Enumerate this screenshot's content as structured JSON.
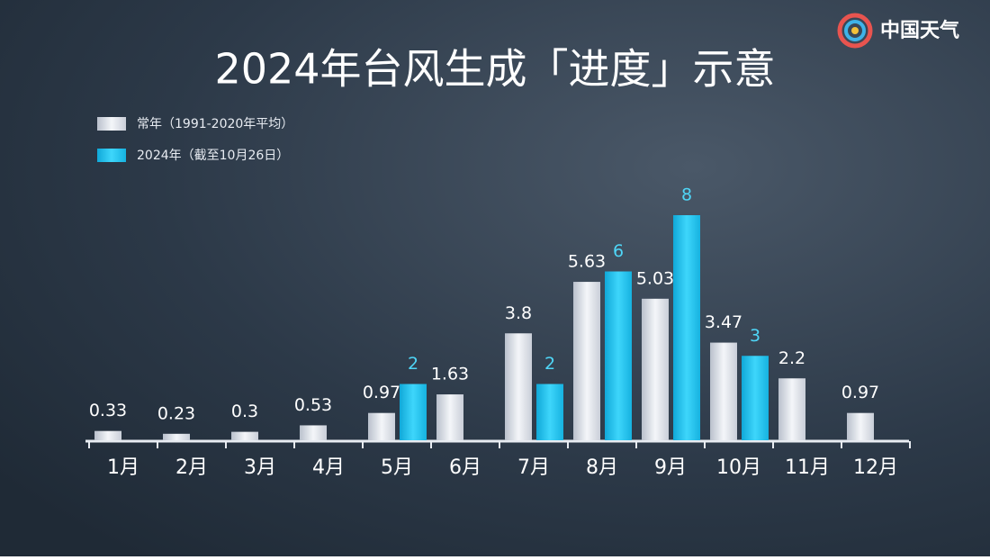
{
  "logo": "中国天气",
  "chart_data": {
    "type": "bar",
    "title": "2024年台风生成「进度」示意",
    "categories": [
      "1月",
      "2月",
      "3月",
      "4月",
      "5月",
      "6月",
      "7月",
      "8月",
      "9月",
      "10月",
      "11月",
      "12月"
    ],
    "series": [
      {
        "name": "常年（1991-2020年平均）",
        "color": "#dfe3ea",
        "values": [
          0.33,
          0.23,
          0.3,
          0.53,
          0.97,
          1.63,
          3.8,
          5.63,
          5.03,
          3.47,
          2.2,
          0.97
        ]
      },
      {
        "name": "2024年（截至10月26日）",
        "color": "#22c3ee",
        "values": [
          null,
          null,
          null,
          null,
          2,
          null,
          2,
          6,
          8,
          3,
          null,
          null
        ]
      }
    ]
  }
}
